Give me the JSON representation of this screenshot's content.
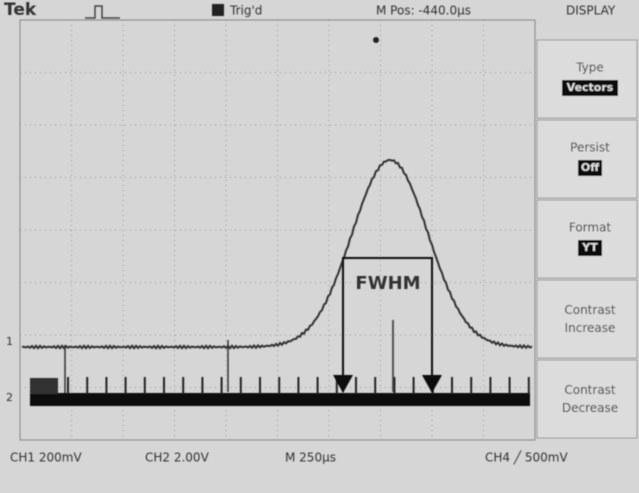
{
  "header": {
    "brand": "Tek",
    "trigger": "Trig'd",
    "position": "M Pos: -440.0µs",
    "menu_title": "DISPLAY"
  },
  "menu": [
    {
      "label": "Type",
      "value": "Vectors"
    },
    {
      "label": "Persist",
      "value": "Off"
    },
    {
      "label": "Format",
      "value": "YT"
    },
    {
      "label": "Contrast Increase"
    },
    {
      "label": "Contrast Decrease"
    }
  ],
  "annotation": "FWHM",
  "channel_markers": [
    "1",
    "2"
  ],
  "footer": {
    "ch1": "CH1 200mV",
    "ch2": "CH2 2.00V",
    "timebase": "M 250µs",
    "trigger": "CH4 ╱ 500mV"
  }
}
